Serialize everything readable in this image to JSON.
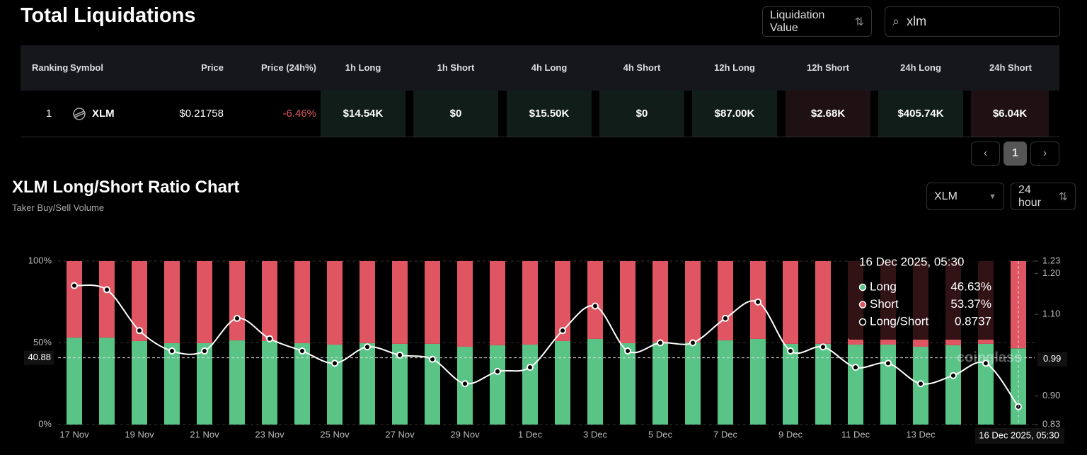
{
  "header": {
    "title": "Total Liquidations",
    "metric_select": "Liquidation Value",
    "search": "xlm"
  },
  "table": {
    "columns": [
      "Ranking",
      "Symbol",
      "Price",
      "Price (24h%)",
      "1h Long",
      "1h Short",
      "4h Long",
      "4h Short",
      "12h Long",
      "12h Short",
      "24h Long",
      "24h Short"
    ],
    "rows": [
      [
        "1",
        "XLM",
        "$0.21758",
        "-6.46%",
        "$14.54K",
        "$0",
        "$15.50K",
        "$0",
        "$87.00K",
        "$2.68K",
        "$405.74K",
        "$6.04K"
      ]
    ]
  },
  "pagination": {
    "page": "1"
  },
  "chart_section": {
    "title": "XLM Long/Short Ratio Chart",
    "subtitle": "Taker Buy/Sell Volume",
    "symbol_select": "XLM",
    "period_select": "24 hour"
  },
  "chart_data": {
    "type": "bar",
    "stacked": true,
    "categories": [
      "17 Nov",
      null,
      "19 Nov",
      null,
      "21 Nov",
      null,
      "23 Nov",
      null,
      "25 Nov",
      null,
      "27 Nov",
      null,
      "29 Nov",
      null,
      "1 Dec",
      null,
      "3 Dec",
      null,
      "5 Dec",
      null,
      "7 Dec",
      null,
      "9 Dec",
      null,
      "11 Dec",
      null,
      "13 Dec",
      null,
      null,
      null
    ],
    "series": [
      {
        "name": "Long",
        "color": "#5ac386",
        "values": [
          53.2,
          53.2,
          51.1,
          49.8,
          49.8,
          51.5,
          51.1,
          49.8,
          48.9,
          49.8,
          49.4,
          49.4,
          47.6,
          48.5,
          48.9,
          51.1,
          52.4,
          49.8,
          50.2,
          50.2,
          51.5,
          52.4,
          49.4,
          49.4,
          48.9,
          48.9,
          47.6,
          48.5,
          49.4,
          46.63
        ]
      },
      {
        "name": "Short",
        "color": "#e05562",
        "values": [
          46.8,
          46.8,
          48.9,
          50.2,
          50.2,
          48.5,
          48.9,
          50.2,
          51.1,
          50.2,
          50.6,
          50.6,
          52.4,
          51.5,
          51.1,
          48.9,
          47.6,
          50.2,
          49.8,
          49.8,
          48.5,
          47.6,
          50.6,
          50.6,
          51.1,
          51.1,
          52.4,
          51.5,
          50.6,
          53.37
        ]
      },
      {
        "name": "Long/Short",
        "type": "line",
        "axis": "y2",
        "color": "#ffffff",
        "values": [
          1.17,
          1.16,
          1.06,
          1.01,
          1.01,
          1.09,
          1.04,
          1.01,
          0.98,
          1.02,
          1.0,
          0.99,
          0.93,
          0.96,
          0.97,
          1.06,
          1.12,
          1.01,
          1.03,
          1.03,
          1.09,
          1.13,
          1.01,
          1.02,
          0.97,
          0.98,
          0.93,
          0.95,
          0.98,
          0.8737
        ]
      }
    ],
    "ylim": [
      0,
      100
    ],
    "yticks": [
      {
        "value": 0,
        "label": "0%"
      },
      {
        "value": 50,
        "label": "50%"
      },
      {
        "value": 100,
        "label": "100%"
      }
    ],
    "y2lim": [
      0.83,
      1.23
    ],
    "y2ticks": [
      0.83,
      {
        "value": 0.9,
        "label": "0.90"
      },
      {
        "value": 1.1,
        "label": "1.10"
      },
      {
        "value": 1.2,
        "label": "1.20"
      },
      1.23
    ],
    "grid": true,
    "crosshair": {
      "y": 40.88,
      "y2": 0.99,
      "x_label": "16 Dec 2025, 05:30"
    },
    "tooltip": {
      "title": "16 Dec 2025, 05:30",
      "rows": [
        "46.63%",
        "53.37%",
        "0.8737"
      ]
    },
    "watermark": "coinglass"
  }
}
